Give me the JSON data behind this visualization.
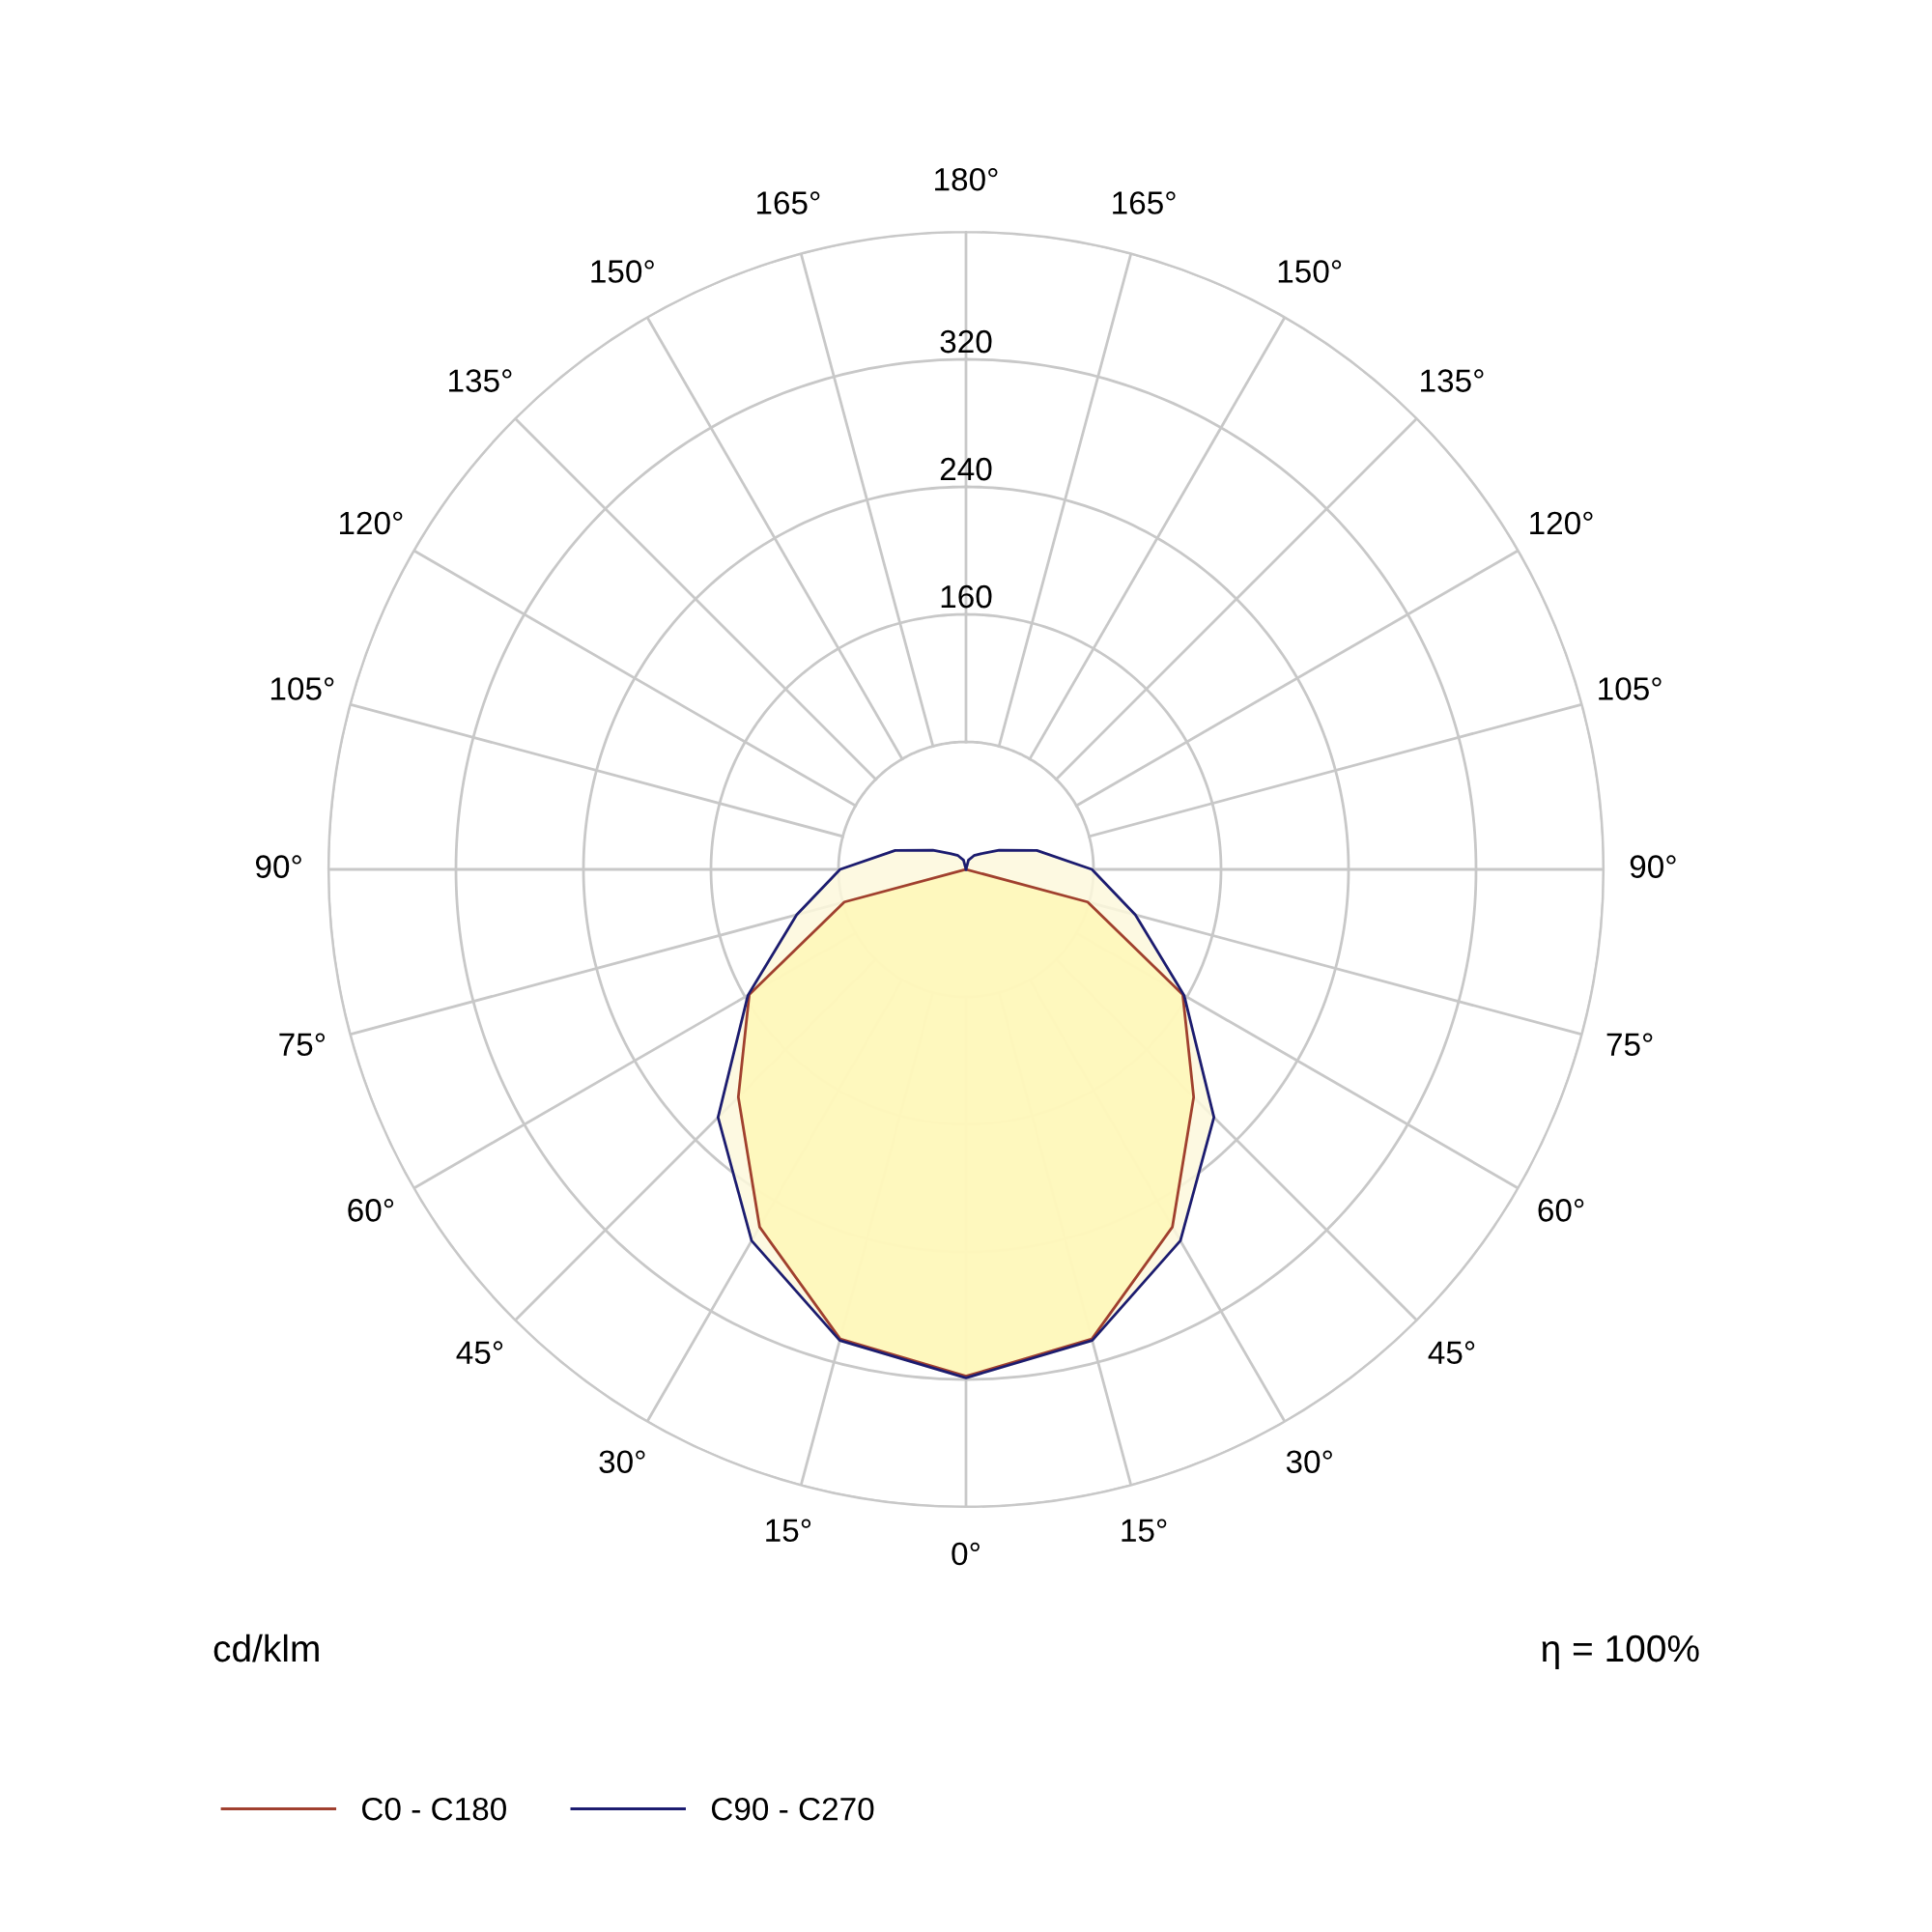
{
  "chart_data": {
    "type": "radar",
    "ylabel": "cd/klm",
    "categories": [
      "180°",
      "165°",
      "150°",
      "135°",
      "120°",
      "105°",
      "90°",
      "75°",
      "60°",
      "45°",
      "30°",
      "15°",
      "0°",
      "15°",
      "30°",
      "45°",
      "60°",
      "75°",
      "90°",
      "105°",
      "120°",
      "135°",
      "150°",
      "165°"
    ],
    "series": [
      {
        "name": "C0 - C180",
        "color": "#a0402f",
        "values": [
          0,
          0,
          0,
          0,
          0,
          0,
          0,
          79,
          157,
          202,
          259,
          305,
          318,
          305,
          259,
          202,
          157,
          79,
          0,
          0,
          0,
          0,
          0,
          0
        ]
      },
      {
        "name": "C90 - C270",
        "color": "#1c1c70",
        "values": [
          0,
          6,
          10,
          14,
          24,
          46,
          79,
          110,
          158,
          220,
          269,
          306,
          319,
          306,
          269,
          220,
          158,
          110,
          79,
          46,
          24,
          14,
          10,
          6
        ]
      }
    ],
    "ylim": [
      0,
      400
    ],
    "yticks": [
      160,
      240,
      320
    ],
    "grid": true,
    "legend": "bottom left",
    "annotations": [
      "η = 100%"
    ]
  }
}
